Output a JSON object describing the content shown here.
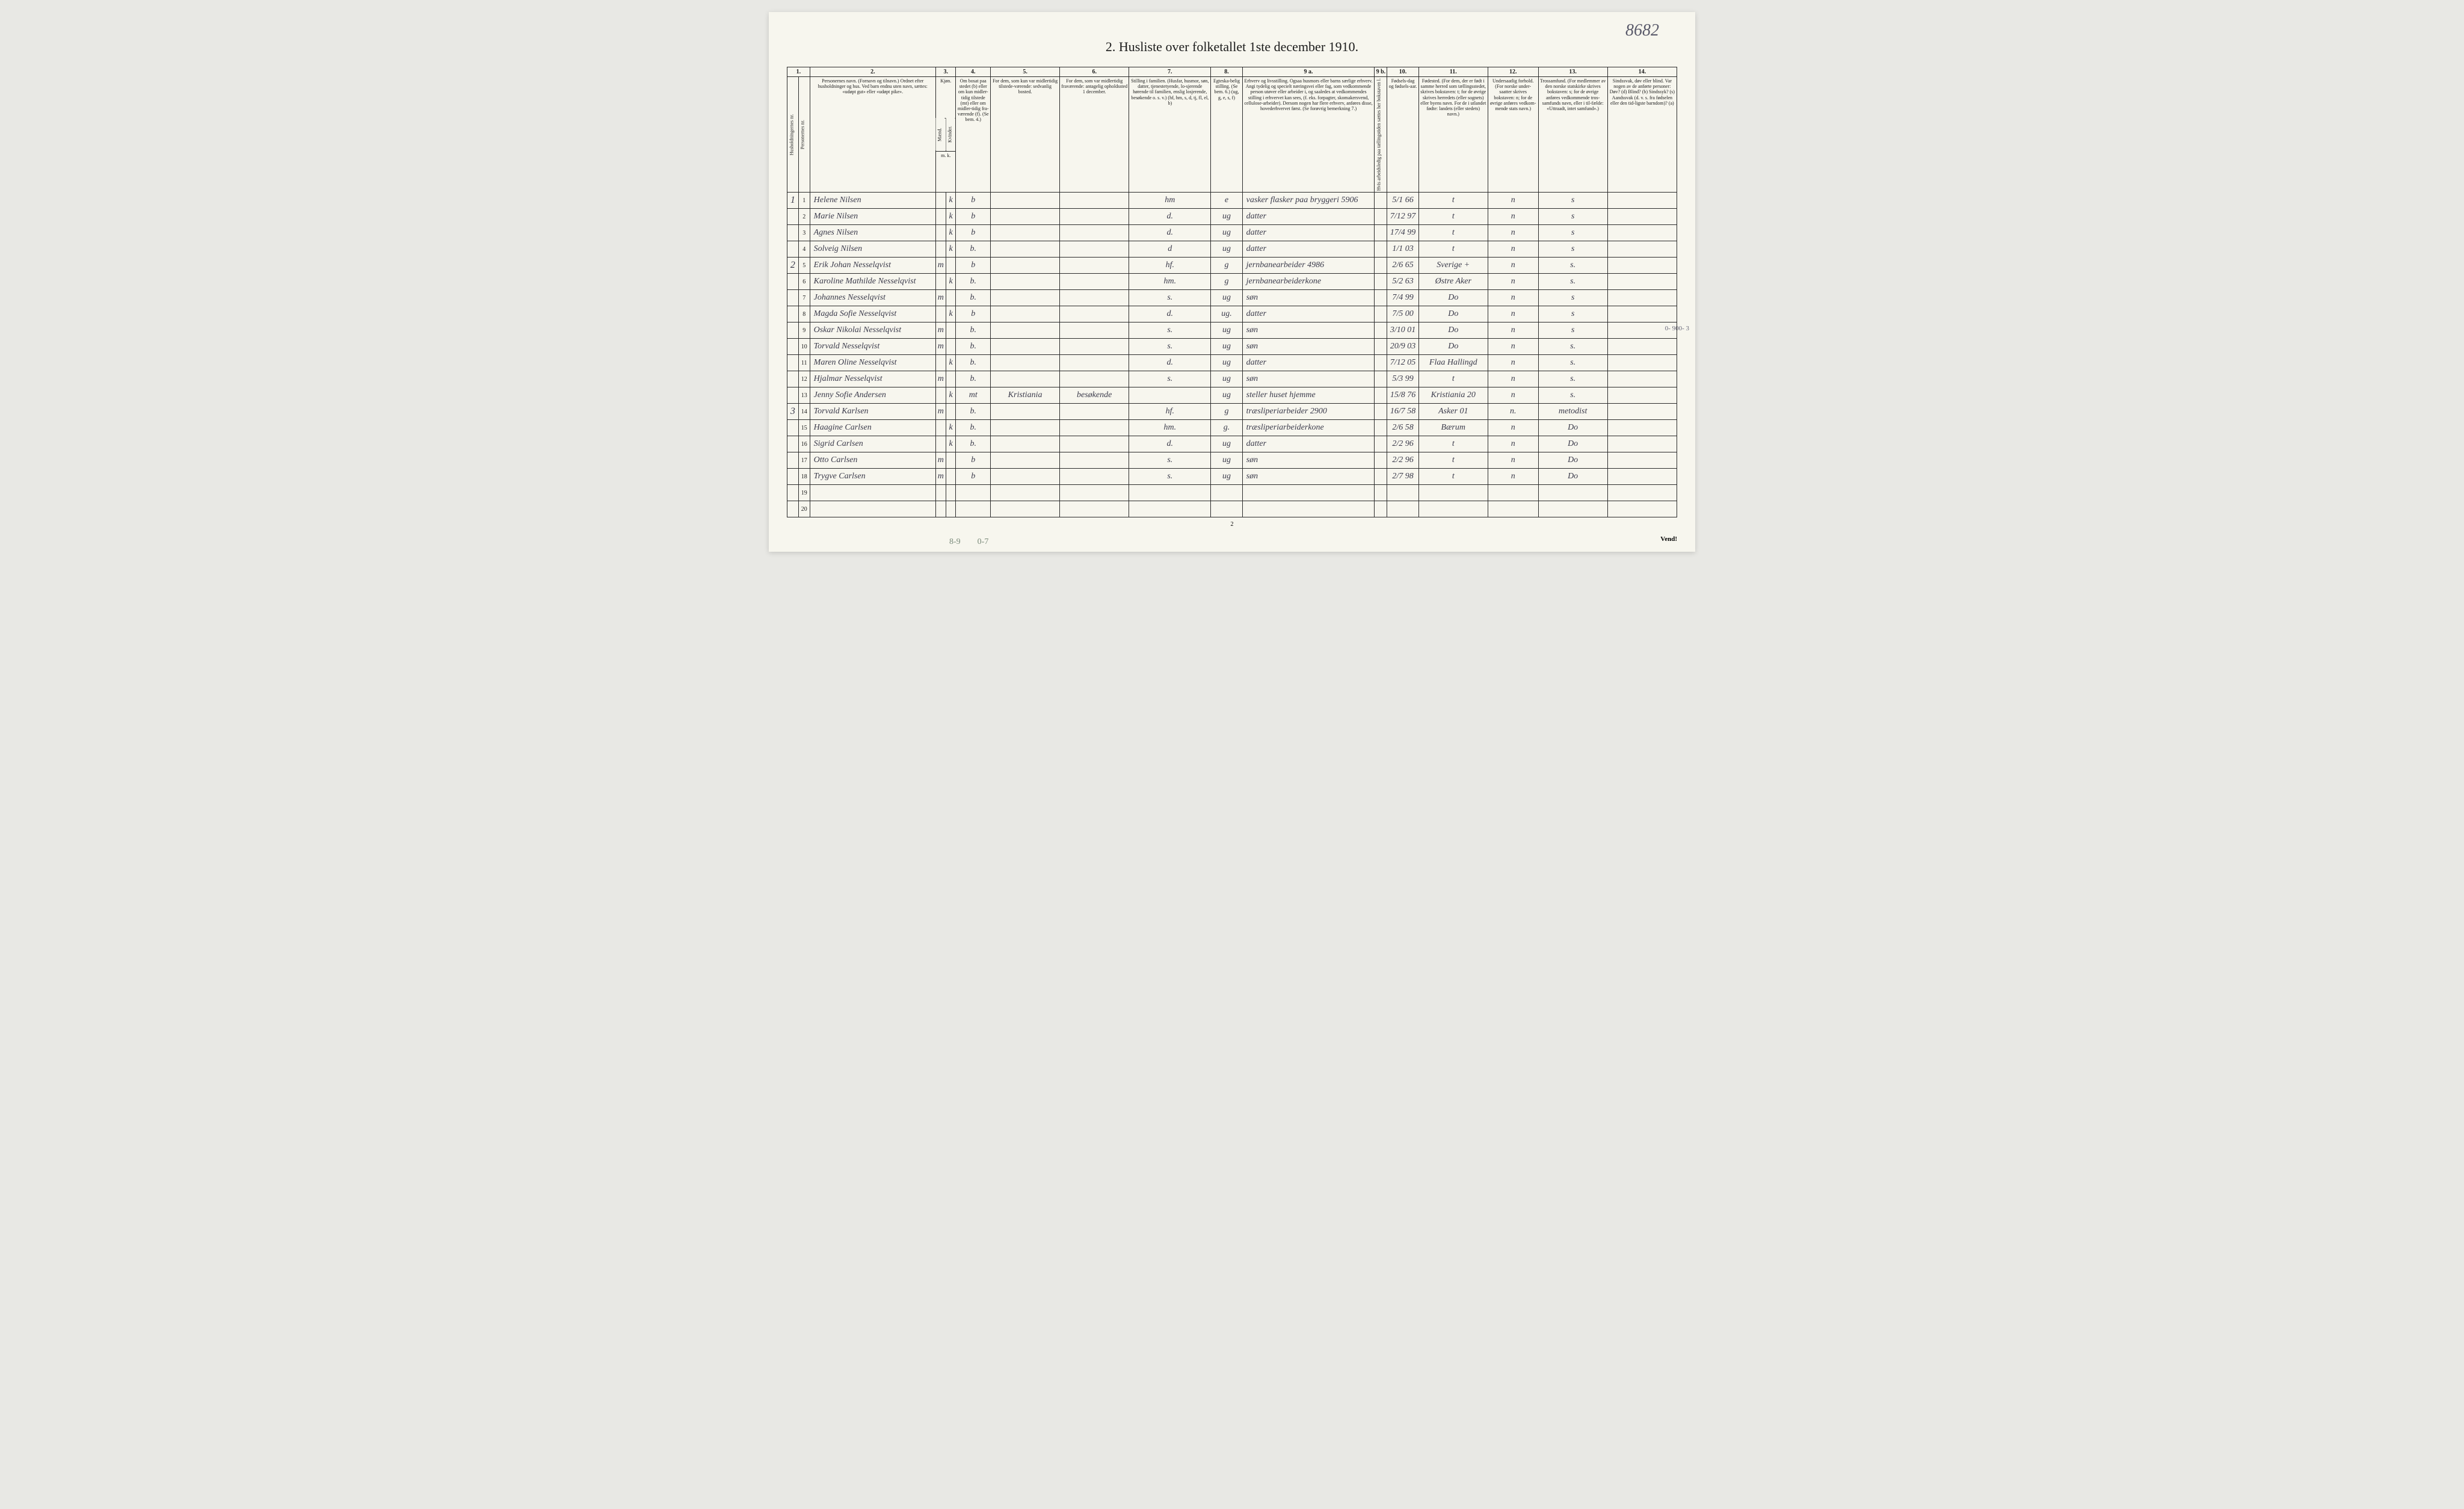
{
  "corner_number": "8682",
  "title": "2.  Husliste over folketallet 1ste december 1910.",
  "page_footer_num": "2",
  "vend_label": "Vend!",
  "bottom_note_1": "8-9",
  "bottom_note_2": "0-7",
  "margin_note_right": "0- 900- 3",
  "col_numbers": [
    "1.",
    "2.",
    "3.",
    "4.",
    "5.",
    "6.",
    "7.",
    "8.",
    "9 a.",
    "9 b.",
    "10.",
    "11.",
    "12.",
    "13.",
    "14."
  ],
  "headers": {
    "c1a": "Husholdningernes nr.",
    "c1b": "Personernes nr.",
    "c2": "Personernes navn.\n(Fornavn og tilnavn.)\nOrdnet efter husholdninger og hus.\nVed barn endnu uten navn, sættes: «udøpt gut» eller «udøpt pike».",
    "c3": "Kjøn.",
    "c3m": "Mænd.",
    "c3k": "Kvinder.",
    "c3mk": "m.  k.",
    "c4": "Om bosat paa stedet (b) eller om kun midler-tidig tilstede (mt) eller om midler-tidig fra-værende (f).\n(Se bem. 4.)",
    "c5": "For dem, som kun var midlertidig tilstede-værende:\nsedvanlig bosted.",
    "c6": "For dem, som var midlertidig fraværende:\nantagelig opholdssted 1 december.",
    "c7": "Stilling i familien.\n(Husfar, husmor, søn, datter, tjenestetyende, lo-sjerende hørende til familien, enslig losjerende, besøkende o. s. v.)\n(hf, hm, s, d, tj, fl, el, b)",
    "c8": "Egteska-belig stilling.\n(Se bem. 6.)\n(ug, g, e, s, f)",
    "c9a": "Erhverv og livsstilling.\nOgsaa husmors eller barns særlige erhverv.\nAngi tydelig og specielt næringsvei eller fag, som vedkommende person utøver eller arbeider i, og saaledes at vedkommendes stilling i erhvervet kan sees, (f. eks. forpagter, skomakersvend, cellulose-arbeider). Dersom nogen har flere erhverv, anføres disse, hovederhvervet først.\n(Se forøvrig bemerkning 7.)",
    "c9b": "Hvis arbeidsledig paa tællingstiden sættes her bokstaven l.",
    "c10": "Fødsels-dag og fødsels-aar.",
    "c11": "Fødested.\n(For dem, der er født i samme herred som tællingsstedet, skrives bokstaven: t; for de øvrige skrives herredets (eller sognets) eller byens navn.\nFor de i utlandet fødte: landets (eller stedets) navn.)",
    "c12": "Undersaatlig forhold.\n(For norske under-saatter skrives bokstaven: n; for de øvrige anføres vedkom-mende stats navn.)",
    "c13": "Trossamfund.\n(For medlemmer av den norske statskirke skrives bokstaven: s; for de øvrige anføres vedkommende tros-samfunds navn, eller i til-fælde: «Uttraadt, intet samfund».)",
    "c14": "Sindssvak, døv eller blind.\nVar nogen av de anførte personer:\nDøv?       (d)\nBlind?      (b)\nSindssyk? (s)\nAandssvak (d. v. s. fra fødselen eller den tid-ligste barndom)? (a)"
  },
  "rows": [
    {
      "hh": "1",
      "pn": "1",
      "name": "Helene Nilsen",
      "m": "",
      "k": "k",
      "b": "b",
      "c5": "",
      "c6": "",
      "c7": "hm",
      "c8": "e",
      "c9a": "vasker flasker paa bryggeri  5906",
      "c9b": "",
      "c10": "5/1 66",
      "c11": "t",
      "c12": "n",
      "c13": "s",
      "c14": ""
    },
    {
      "hh": "",
      "pn": "2",
      "name": "Marie Nilsen",
      "m": "",
      "k": "k",
      "b": "b",
      "c5": "",
      "c6": "",
      "c7": "d.",
      "c8": "ug",
      "c9a": "datter",
      "c9b": "",
      "c10": "7/12 97",
      "c11": "t",
      "c12": "n",
      "c13": "s",
      "c14": ""
    },
    {
      "hh": "",
      "pn": "3",
      "name": "Agnes Nilsen",
      "m": "",
      "k": "k",
      "b": "b",
      "c5": "",
      "c6": "",
      "c7": "d.",
      "c8": "ug",
      "c9a": "datter",
      "c9b": "",
      "c10": "17/4 99",
      "c11": "t",
      "c12": "n",
      "c13": "s",
      "c14": ""
    },
    {
      "hh": "",
      "pn": "4",
      "name": "Solveig Nilsen",
      "m": "",
      "k": "k",
      "b": "b.",
      "c5": "",
      "c6": "",
      "c7": "d",
      "c8": "ug",
      "c9a": "datter",
      "c9b": "",
      "c10": "1/1 03",
      "c11": "t",
      "c12": "n",
      "c13": "s",
      "c14": ""
    },
    {
      "hh": "2",
      "pn": "5",
      "name": "Erik Johan Nesselqvist",
      "m": "m",
      "k": "",
      "b": "b",
      "c5": "",
      "c6": "",
      "c7": "hf.",
      "c8": "g",
      "c9a": "jernbanearbeider  4986",
      "c9b": "",
      "c10": "2/6 65",
      "c11": "Sverige +",
      "c12": "n",
      "c13": "s.",
      "c14": ""
    },
    {
      "hh": "",
      "pn": "6",
      "name": "Karoline Mathilde Nesselqvist",
      "m": "",
      "k": "k",
      "b": "b.",
      "c5": "",
      "c6": "",
      "c7": "hm.",
      "c8": "g",
      "c9a": "jernbanearbeiderkone",
      "c9b": "",
      "c10": "5/2 63",
      "c11": "Østre Aker",
      "c12": "n",
      "c13": "s.",
      "c14": ""
    },
    {
      "hh": "",
      "pn": "7",
      "name": "Johannes Nesselqvist",
      "m": "m",
      "k": "",
      "b": "b.",
      "c5": "",
      "c6": "",
      "c7": "s.",
      "c8": "ug",
      "c9a": "søn",
      "c9b": "",
      "c10": "7/4 99",
      "c11": "Do",
      "c12": "n",
      "c13": "s",
      "c14": ""
    },
    {
      "hh": "",
      "pn": "8",
      "name": "Magda Sofie Nesselqvist",
      "m": "",
      "k": "k",
      "b": "b",
      "c5": "",
      "c6": "",
      "c7": "d.",
      "c8": "ug.",
      "c9a": "datter",
      "c9b": "",
      "c10": "7/5 00",
      "c11": "Do",
      "c12": "n",
      "c13": "s",
      "c14": ""
    },
    {
      "hh": "",
      "pn": "9",
      "name": "Oskar Nikolai Nesselqvist",
      "m": "m",
      "k": "",
      "b": "b.",
      "c5": "",
      "c6": "",
      "c7": "s.",
      "c8": "ug",
      "c9a": "søn",
      "c9b": "",
      "c10": "3/10 01",
      "c11": "Do",
      "c12": "n",
      "c13": "s",
      "c14": ""
    },
    {
      "hh": "",
      "pn": "10",
      "name": "Torvald Nesselqvist",
      "m": "m",
      "k": "",
      "b": "b.",
      "c5": "",
      "c6": "",
      "c7": "s.",
      "c8": "ug",
      "c9a": "søn",
      "c9b": "",
      "c10": "20/9 03",
      "c11": "Do",
      "c12": "n",
      "c13": "s.",
      "c14": ""
    },
    {
      "hh": "",
      "pn": "11",
      "name": "Maren Oline Nesselqvist",
      "m": "",
      "k": "k",
      "b": "b.",
      "c5": "",
      "c6": "",
      "c7": "d.",
      "c8": "ug",
      "c9a": "datter",
      "c9b": "",
      "c10": "7/12 05",
      "c11": "Flaa Hallingd",
      "c12": "n",
      "c13": "s.",
      "c14": ""
    },
    {
      "hh": "",
      "pn": "12",
      "name": "Hjalmar Nesselqvist",
      "m": "m",
      "k": "",
      "b": "b.",
      "c5": "",
      "c6": "",
      "c7": "s.",
      "c8": "ug",
      "c9a": "søn",
      "c9b": "",
      "c10": "5/3 99",
      "c11": "t",
      "c12": "n",
      "c13": "s.",
      "c14": ""
    },
    {
      "hh": "",
      "pn": "13",
      "name": "Jenny Sofie Andersen",
      "m": "",
      "k": "k",
      "b": "mt",
      "c5": "Kristiania",
      "c6": "besøkende",
      "c7": "",
      "c8": "ug",
      "c9a": "steller huset hjemme",
      "c9b": "",
      "c10": "15/8 76",
      "c11": "Kristiania  20",
      "c12": "n",
      "c13": "s.",
      "c14": ""
    },
    {
      "hh": "3",
      "pn": "14",
      "name": "Torvald Karlsen",
      "m": "m",
      "k": "",
      "b": "b.",
      "c5": "",
      "c6": "",
      "c7": "hf.",
      "c8": "g",
      "c9a": "træsliperiarbeider  2900",
      "c9b": "",
      "c10": "16/7 58",
      "c11": "Asker  01",
      "c12": "n.",
      "c13": "metodist",
      "c14": ""
    },
    {
      "hh": "",
      "pn": "15",
      "name": "Haagine Carlsen",
      "m": "",
      "k": "k",
      "b": "b.",
      "c5": "",
      "c6": "",
      "c7": "hm.",
      "c8": "g.",
      "c9a": "træsliperiarbeiderkone",
      "c9b": "",
      "c10": "2/6 58",
      "c11": "Bærum",
      "c12": "n",
      "c13": "Do",
      "c14": ""
    },
    {
      "hh": "",
      "pn": "16",
      "name": "Sigrid Carlsen",
      "m": "",
      "k": "k",
      "b": "b.",
      "c5": "",
      "c6": "",
      "c7": "d.",
      "c8": "ug",
      "c9a": "datter",
      "c9b": "",
      "c10": "2/2 96",
      "c11": "t",
      "c12": "n",
      "c13": "Do",
      "c14": ""
    },
    {
      "hh": "",
      "pn": "17",
      "name": "Otto Carlsen",
      "m": "m",
      "k": "",
      "b": "b",
      "c5": "",
      "c6": "",
      "c7": "s.",
      "c8": "ug",
      "c9a": "søn",
      "c9b": "",
      "c10": "2/2 96",
      "c11": "t",
      "c12": "n",
      "c13": "Do",
      "c14": ""
    },
    {
      "hh": "",
      "pn": "18",
      "name": "Trygve Carlsen",
      "m": "m",
      "k": "",
      "b": "b",
      "c5": "",
      "c6": "",
      "c7": "s.",
      "c8": "ug",
      "c9a": "søn",
      "c9b": "",
      "c10": "2/7 98",
      "c11": "t",
      "c12": "n",
      "c13": "Do",
      "c14": ""
    },
    {
      "hh": "",
      "pn": "19",
      "name": "",
      "m": "",
      "k": "",
      "b": "",
      "c5": "",
      "c6": "",
      "c7": "",
      "c8": "",
      "c9a": "",
      "c9b": "",
      "c10": "",
      "c11": "",
      "c12": "",
      "c13": "",
      "c14": ""
    },
    {
      "hh": "",
      "pn": "20",
      "name": "",
      "m": "",
      "k": "",
      "b": "",
      "c5": "",
      "c6": "",
      "c7": "",
      "c8": "",
      "c9a": "",
      "c9b": "",
      "c10": "",
      "c11": "",
      "c12": "",
      "c13": "",
      "c14": ""
    }
  ],
  "column_widths": {
    "hh": "18px",
    "pn": "18px",
    "name": "200px",
    "m": "16px",
    "k": "16px",
    "c4": "55px",
    "c5": "110px",
    "c6": "110px",
    "c7": "130px",
    "c8": "50px",
    "c9a": "210px",
    "c9b": "20px",
    "c10": "50px",
    "c11": "110px",
    "c12": "80px",
    "c13": "110px",
    "c14": "110px"
  },
  "colors": {
    "page_bg": "#f7f6ee",
    "body_bg": "#e8e8e4",
    "border": "#2a2a2a",
    "print_text": "#1a1a1a",
    "handwriting": "#3a3a4a"
  }
}
